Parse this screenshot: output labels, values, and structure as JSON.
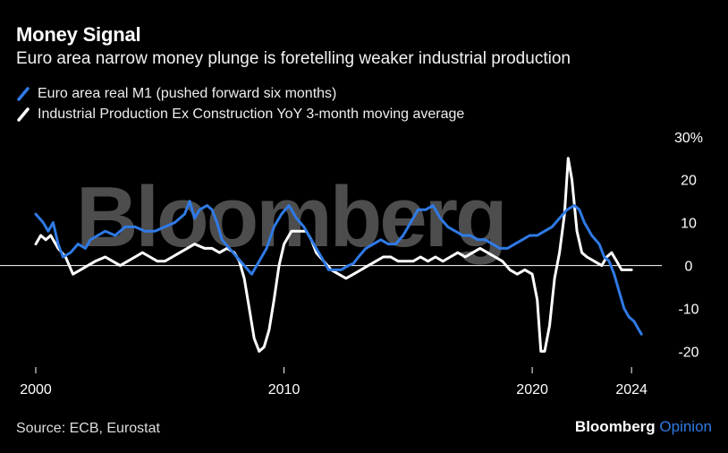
{
  "header": {
    "title": "Money Signal",
    "subtitle": "Euro area narrow money plunge is foretelling weaker industrial production"
  },
  "watermark": "Bloomberg",
  "footer": {
    "source": "Source: ECB, Eurostat",
    "brand_main": "Bloomberg",
    "brand_accent": "Opinion"
  },
  "colors": {
    "background": "#000000",
    "series_m1": "#2f7ae5",
    "series_ip": "#ffffff",
    "brand_accent": "#2f7ae5"
  },
  "chart_data": {
    "type": "line",
    "title": "Money Signal",
    "subtitle": "Euro area narrow money plunge is foretelling weaker industrial production",
    "xlabel": "",
    "ylabel": "",
    "xlim": [
      2000,
      2024.5
    ],
    "ylim": [
      -22,
      31
    ],
    "x_ticks": [
      2000,
      2010,
      2020,
      2024
    ],
    "x_tick_labels": [
      "2000",
      "2010",
      "2020",
      "2024"
    ],
    "y_ticks": [
      30,
      20,
      10,
      0,
      -10,
      -20
    ],
    "y_tick_labels": [
      "30%",
      "20",
      "10",
      "0",
      "-10",
      "-20"
    ],
    "zero_line": true,
    "grid": false,
    "legend_position": "top-left",
    "series": [
      {
        "name": "Euro area real M1 (pushed forward six months)",
        "color": "#2f7ae5",
        "points": [
          [
            2000.0,
            12
          ],
          [
            2000.3,
            10
          ],
          [
            2000.5,
            8
          ],
          [
            2000.7,
            10
          ],
          [
            2000.9,
            5
          ],
          [
            2001.1,
            2
          ],
          [
            2001.4,
            3
          ],
          [
            2001.7,
            5
          ],
          [
            2002.0,
            4
          ],
          [
            2002.2,
            6
          ],
          [
            2002.5,
            7
          ],
          [
            2002.8,
            8
          ],
          [
            2003.2,
            7
          ],
          [
            2003.6,
            9
          ],
          [
            2004.0,
            9
          ],
          [
            2004.4,
            8
          ],
          [
            2004.8,
            8
          ],
          [
            2005.2,
            9
          ],
          [
            2005.6,
            10
          ],
          [
            2006.0,
            12
          ],
          [
            2006.2,
            15
          ],
          [
            2006.4,
            11
          ],
          [
            2006.6,
            13
          ],
          [
            2006.9,
            14
          ],
          [
            2007.1,
            13
          ],
          [
            2007.3,
            10
          ],
          [
            2007.5,
            6
          ],
          [
            2007.8,
            4
          ],
          [
            2008.1,
            2
          ],
          [
            2008.4,
            0
          ],
          [
            2008.7,
            -2
          ],
          [
            2009.0,
            1
          ],
          [
            2009.3,
            4
          ],
          [
            2009.6,
            9
          ],
          [
            2009.9,
            12
          ],
          [
            2010.2,
            14
          ],
          [
            2010.5,
            11
          ],
          [
            2010.8,
            9
          ],
          [
            2011.0,
            7
          ],
          [
            2011.3,
            4
          ],
          [
            2011.6,
            1
          ],
          [
            2011.8,
            -1
          ],
          [
            2012.0,
            -1
          ],
          [
            2012.3,
            -1
          ],
          [
            2012.6,
            0
          ],
          [
            2012.8,
            0.5
          ],
          [
            2013.0,
            2
          ],
          [
            2013.3,
            4
          ],
          [
            2013.6,
            5
          ],
          [
            2013.9,
            6
          ],
          [
            2014.2,
            5
          ],
          [
            2014.5,
            5
          ],
          [
            2014.8,
            7
          ],
          [
            2015.1,
            10
          ],
          [
            2015.4,
            13
          ],
          [
            2015.7,
            13
          ],
          [
            2016.0,
            14
          ],
          [
            2016.3,
            11
          ],
          [
            2016.6,
            9
          ],
          [
            2016.9,
            8
          ],
          [
            2017.2,
            7
          ],
          [
            2017.5,
            7
          ],
          [
            2017.8,
            6
          ],
          [
            2018.1,
            6
          ],
          [
            2018.4,
            5
          ],
          [
            2018.7,
            4
          ],
          [
            2019.0,
            4
          ],
          [
            2019.3,
            5
          ],
          [
            2019.6,
            6
          ],
          [
            2019.9,
            7
          ],
          [
            2020.2,
            7
          ],
          [
            2020.5,
            8
          ],
          [
            2020.8,
            9
          ],
          [
            2021.1,
            11
          ],
          [
            2021.4,
            13
          ],
          [
            2021.7,
            14
          ],
          [
            2021.9,
            13
          ],
          [
            2022.1,
            10
          ],
          [
            2022.4,
            7
          ],
          [
            2022.7,
            5
          ],
          [
            2022.9,
            2
          ],
          [
            2023.1,
            1
          ],
          [
            2023.3,
            -2
          ],
          [
            2023.5,
            -6
          ],
          [
            2023.7,
            -10
          ],
          [
            2023.9,
            -12
          ],
          [
            2024.1,
            -13
          ],
          [
            2024.3,
            -15
          ],
          [
            2024.4,
            -16
          ]
        ]
      },
      {
        "name": "Industrial Production Ex Construction YoY 3-month moving average",
        "color": "#ffffff",
        "points": [
          [
            2000.0,
            5
          ],
          [
            2000.2,
            7
          ],
          [
            2000.4,
            6
          ],
          [
            2000.6,
            7
          ],
          [
            2000.9,
            4
          ],
          [
            2001.2,
            2
          ],
          [
            2001.5,
            -2
          ],
          [
            2001.8,
            -1
          ],
          [
            2002.1,
            0
          ],
          [
            2002.4,
            1
          ],
          [
            2002.8,
            2
          ],
          [
            2003.1,
            1
          ],
          [
            2003.4,
            0
          ],
          [
            2003.7,
            1
          ],
          [
            2004.0,
            2
          ],
          [
            2004.3,
            3
          ],
          [
            2004.6,
            2
          ],
          [
            2004.9,
            1
          ],
          [
            2005.2,
            1
          ],
          [
            2005.5,
            2
          ],
          [
            2005.8,
            3
          ],
          [
            2006.1,
            4
          ],
          [
            2006.4,
            5
          ],
          [
            2006.8,
            4
          ],
          [
            2007.1,
            4
          ],
          [
            2007.4,
            3
          ],
          [
            2007.7,
            4
          ],
          [
            2008.0,
            3
          ],
          [
            2008.2,
            1
          ],
          [
            2008.4,
            -3
          ],
          [
            2008.6,
            -10
          ],
          [
            2008.8,
            -17
          ],
          [
            2009.0,
            -20
          ],
          [
            2009.2,
            -19
          ],
          [
            2009.4,
            -15
          ],
          [
            2009.6,
            -8
          ],
          [
            2009.8,
            0
          ],
          [
            2010.0,
            5
          ],
          [
            2010.3,
            8
          ],
          [
            2010.6,
            8
          ],
          [
            2010.9,
            8
          ],
          [
            2011.1,
            6
          ],
          [
            2011.3,
            3
          ],
          [
            2011.6,
            1
          ],
          [
            2011.9,
            -1
          ],
          [
            2012.2,
            -2
          ],
          [
            2012.5,
            -3
          ],
          [
            2012.8,
            -2
          ],
          [
            2013.1,
            -1
          ],
          [
            2013.4,
            0
          ],
          [
            2013.7,
            1
          ],
          [
            2014.0,
            2
          ],
          [
            2014.3,
            2
          ],
          [
            2014.6,
            1
          ],
          [
            2014.9,
            1
          ],
          [
            2015.2,
            1
          ],
          [
            2015.5,
            2
          ],
          [
            2015.8,
            1
          ],
          [
            2016.1,
            2
          ],
          [
            2016.4,
            1
          ],
          [
            2016.7,
            2
          ],
          [
            2017.0,
            3
          ],
          [
            2017.3,
            2
          ],
          [
            2017.6,
            3
          ],
          [
            2017.9,
            4
          ],
          [
            2018.2,
            3
          ],
          [
            2018.5,
            2
          ],
          [
            2018.8,
            1
          ],
          [
            2019.1,
            -1
          ],
          [
            2019.4,
            -2
          ],
          [
            2019.7,
            -1
          ],
          [
            2020.0,
            -2
          ],
          [
            2020.2,
            -8
          ],
          [
            2020.35,
            -20
          ],
          [
            2020.5,
            -20
          ],
          [
            2020.7,
            -14
          ],
          [
            2020.9,
            -3
          ],
          [
            2021.1,
            3
          ],
          [
            2021.3,
            12
          ],
          [
            2021.45,
            25
          ],
          [
            2021.6,
            20
          ],
          [
            2021.8,
            8
          ],
          [
            2022.0,
            3
          ],
          [
            2022.2,
            2
          ],
          [
            2022.5,
            1
          ],
          [
            2022.8,
            0
          ],
          [
            2023.0,
            2
          ],
          [
            2023.2,
            3
          ],
          [
            2023.4,
            1
          ],
          [
            2023.6,
            -1
          ],
          [
            2023.8,
            -1
          ],
          [
            2024.0,
            -1
          ]
        ]
      }
    ]
  }
}
